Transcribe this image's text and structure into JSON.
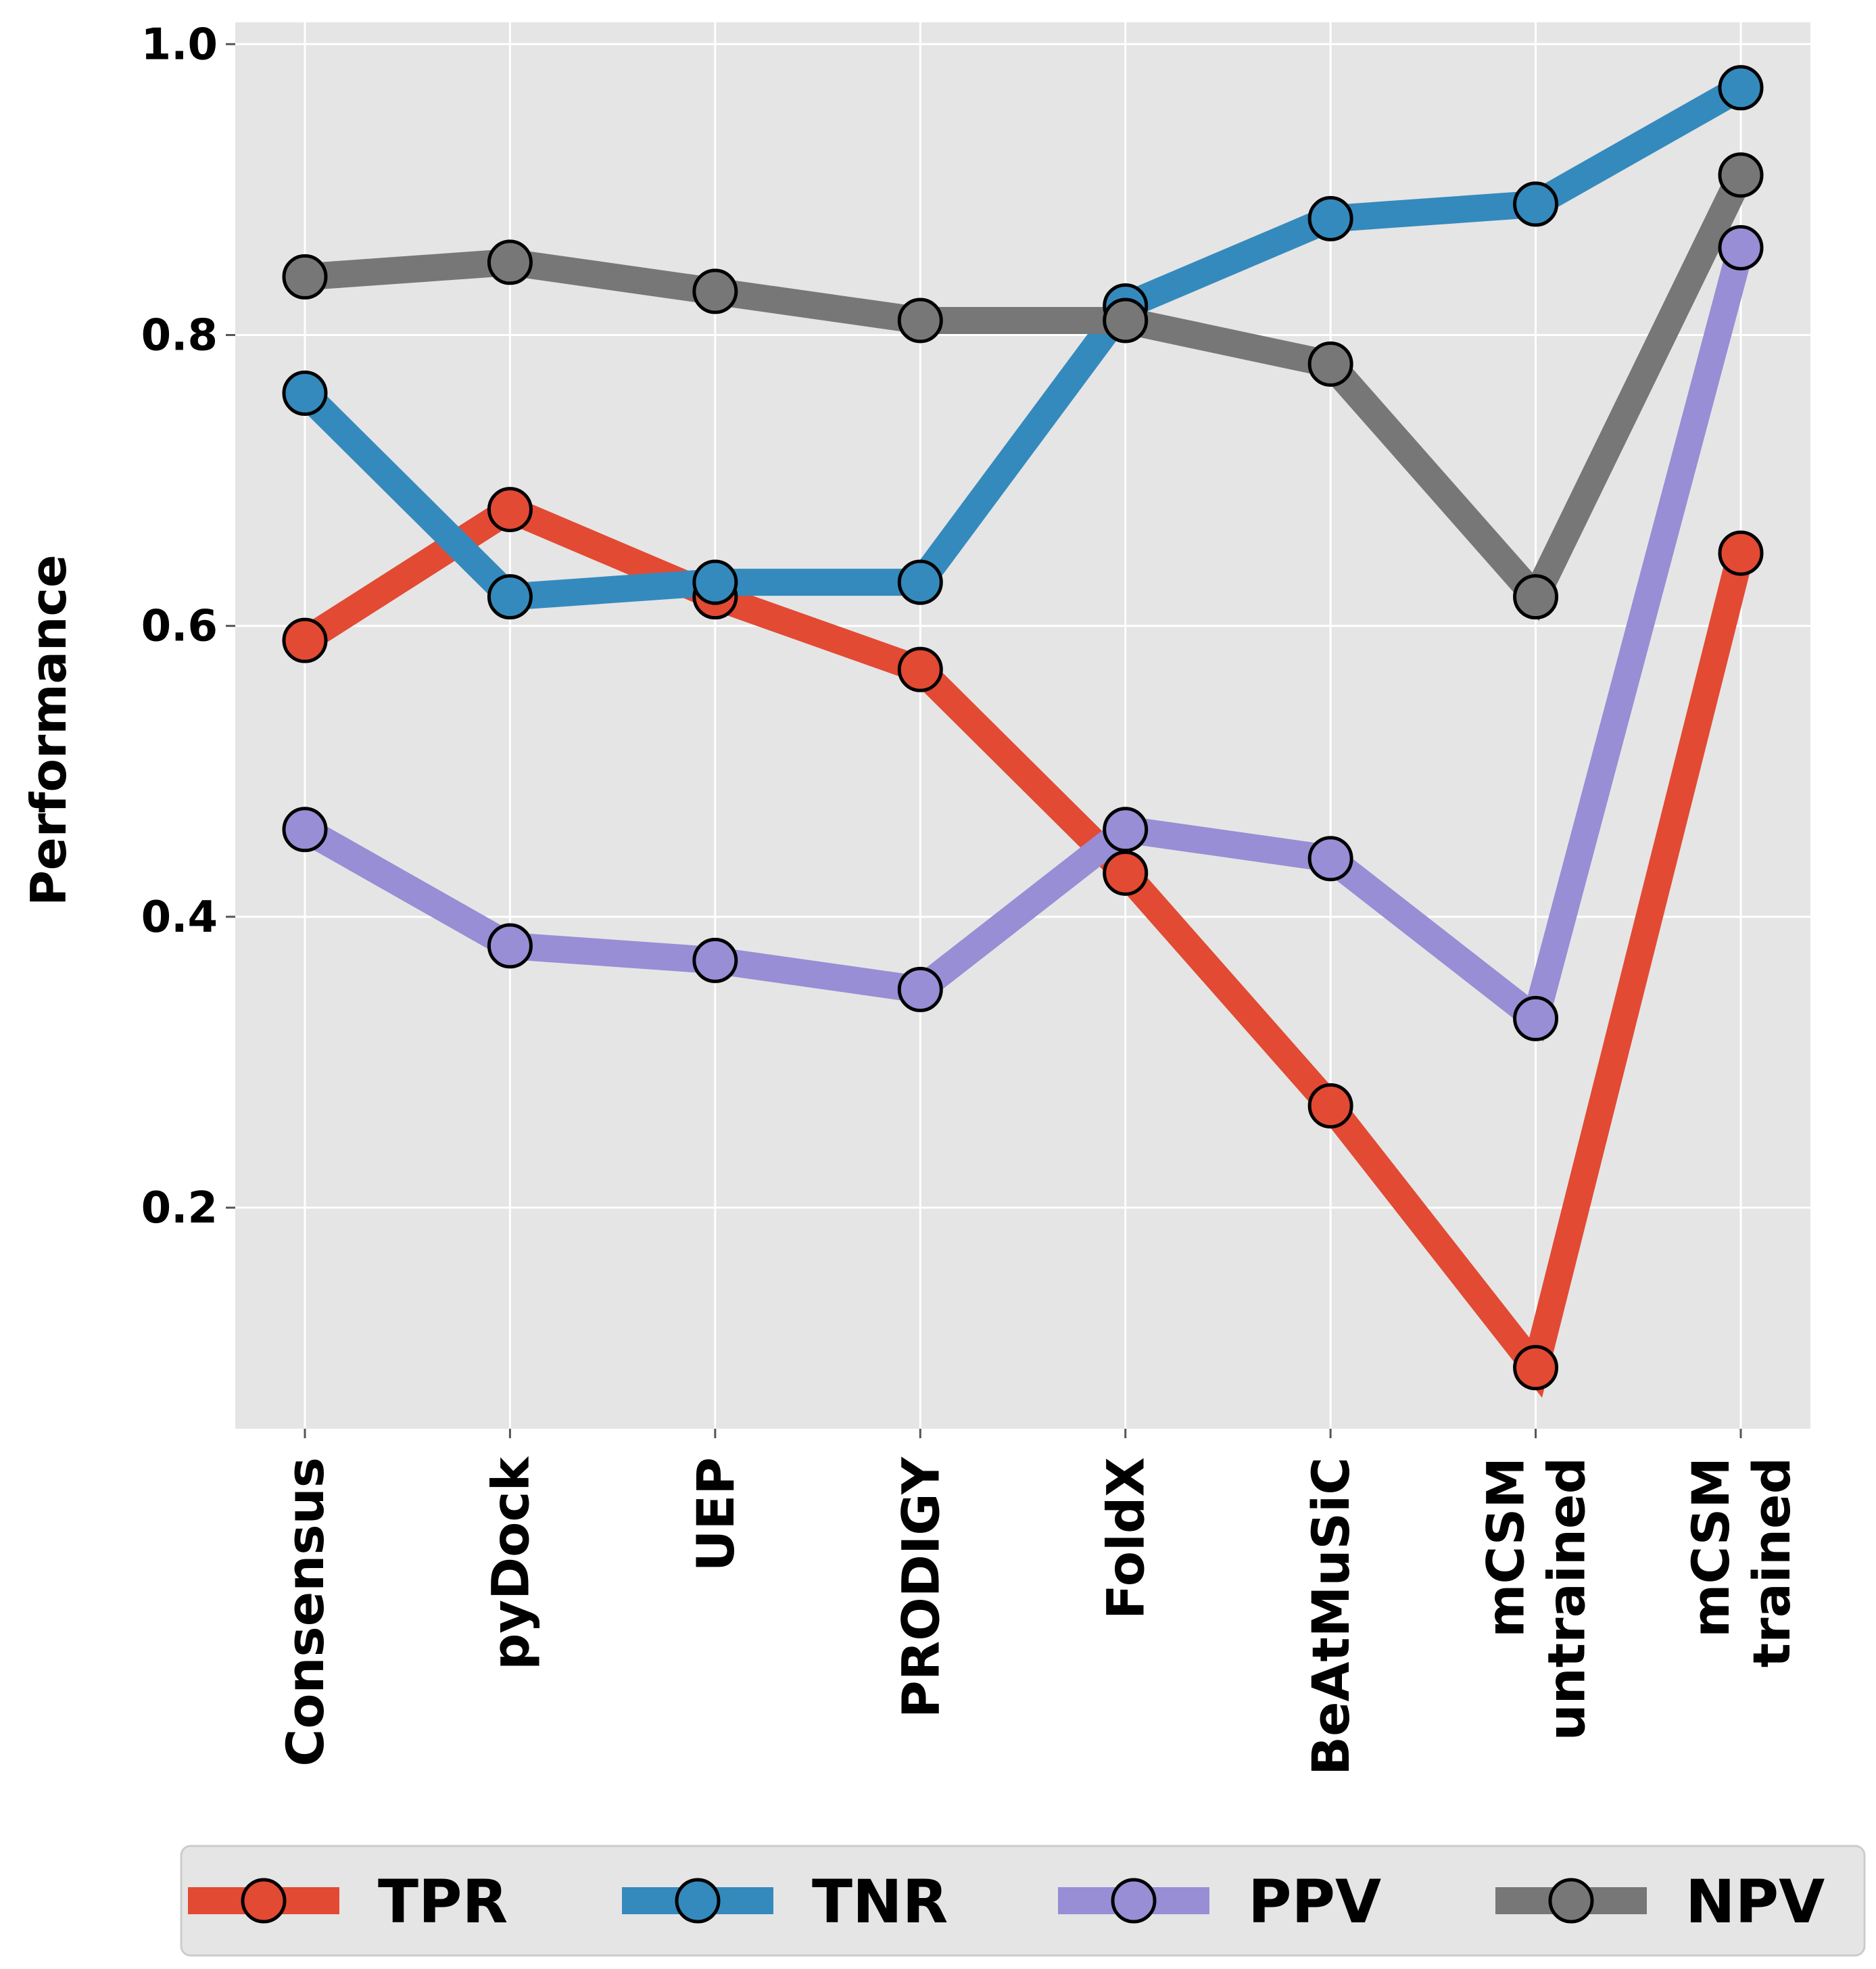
{
  "chart_data": {
    "type": "line",
    "categories": [
      "Consensus",
      "pyDock",
      "UEP",
      "PRODIGY",
      "FoldX",
      "BeAtMuSiC",
      "mCSM\nuntrained",
      "mCSM\ntrained"
    ],
    "series": [
      {
        "name": "TPR",
        "color": "#E24A33",
        "values": [
          0.59,
          0.68,
          0.62,
          0.57,
          0.43,
          0.27,
          0.09,
          0.65
        ]
      },
      {
        "name": "TNR",
        "color": "#348ABD",
        "values": [
          0.76,
          0.62,
          0.63,
          0.63,
          0.82,
          0.88,
          0.89,
          0.97
        ]
      },
      {
        "name": "PPV",
        "color": "#988ED5",
        "values": [
          0.46,
          0.38,
          0.37,
          0.35,
          0.46,
          0.44,
          0.33,
          0.86
        ]
      },
      {
        "name": "NPV",
        "color": "#777777",
        "values": [
          0.84,
          0.85,
          0.83,
          0.81,
          0.81,
          0.78,
          0.62,
          0.91
        ]
      }
    ],
    "ylabel": "Performance",
    "xlabel": "",
    "ylim": [
      0.048,
      1.015
    ],
    "yticks": [
      "0.2",
      "0.4",
      "0.6",
      "0.8",
      "1.0"
    ],
    "grid": true,
    "legend_placement": "bottom",
    "plot_background": "#E5E5E5",
    "marker_edge_color": "#000000"
  }
}
